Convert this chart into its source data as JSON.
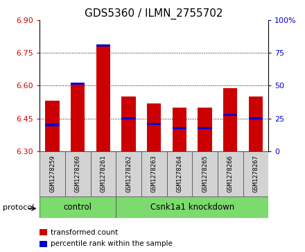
{
  "title": "GDS5360 / ILMN_2755702",
  "samples": [
    "GSM1278259",
    "GSM1278260",
    "GSM1278261",
    "GSM1278262",
    "GSM1278263",
    "GSM1278264",
    "GSM1278265",
    "GSM1278266",
    "GSM1278267"
  ],
  "bar_bottoms": [
    6.3,
    6.3,
    6.3,
    6.3,
    6.3,
    6.3,
    6.3,
    6.3,
    6.3
  ],
  "bar_tops": [
    6.53,
    6.61,
    6.78,
    6.55,
    6.52,
    6.5,
    6.5,
    6.59,
    6.55
  ],
  "percentile_values": [
    6.42,
    6.61,
    6.785,
    6.45,
    6.425,
    6.405,
    6.405,
    6.465,
    6.45
  ],
  "ylim_left": [
    6.3,
    6.9
  ],
  "ylim_right": [
    0,
    100
  ],
  "yticks_left": [
    6.3,
    6.45,
    6.6,
    6.75,
    6.9
  ],
  "yticks_right": [
    0,
    25,
    50,
    75,
    100
  ],
  "bar_color": "#cc0000",
  "percentile_color": "#0000cc",
  "bar_width": 0.55,
  "control_count": 3,
  "knockdown_count": 6,
  "control_label": "control",
  "knockdown_label": "Csnk1a1 knockdown",
  "group_color": "#7dda6f",
  "protocol_label": "protocol",
  "legend_red_label": "transformed count",
  "legend_blue_label": "percentile rank within the sample",
  "tick_color_left": "#cc0000",
  "tick_color_right": "#0000cc",
  "bg_color": "#ffffff",
  "grid_yticks": [
    6.45,
    6.6,
    6.75
  ],
  "title_fontsize": 11,
  "tick_fontsize": 8,
  "sample_label_fontsize": 6.5,
  "legend_fontsize": 7.5,
  "group_fontsize": 8.5,
  "protocol_fontsize": 8
}
